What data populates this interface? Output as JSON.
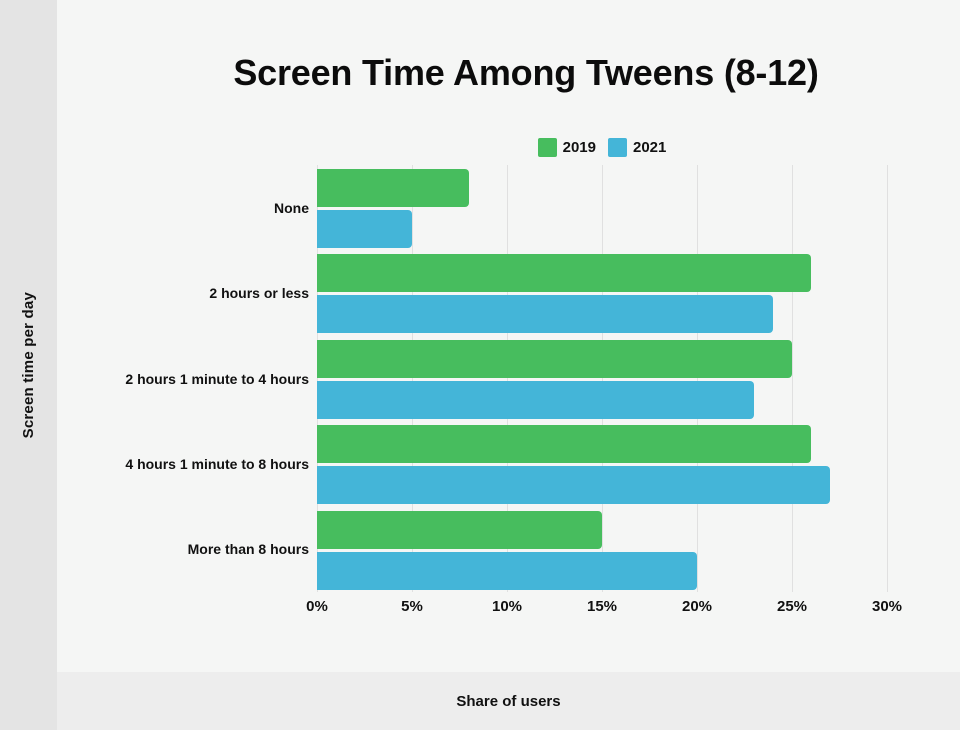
{
  "title": "Screen Time Among Tweens (8-12)",
  "sidebar": {
    "y_axis_label": "Screen time per day"
  },
  "footer": {
    "x_axis_label": "Share of users"
  },
  "legend": {
    "items": [
      {
        "label": "2019",
        "color": "#47bd5e"
      },
      {
        "label": "2021",
        "color": "#44b5d8"
      }
    ]
  },
  "colors": {
    "page_bg": "#f5f6f5",
    "sidebar_bg": "#e4e4e4",
    "footer_bg": "#ededed",
    "gridline": "#e0e0e0",
    "text": "#111111",
    "series_2019": "#47bd5e",
    "series_2021": "#44b5d8"
  },
  "chart_data": {
    "type": "bar",
    "orientation": "horizontal",
    "title": "Screen Time Among Tweens (8-12)",
    "xlabel": "Share of users",
    "ylabel": "Screen time per day",
    "categories": [
      "None",
      "2 hours or less",
      "2 hours 1 minute to 4 hours",
      "4 hours 1 minute to 8 hours",
      "More than 8 hours"
    ],
    "series": [
      {
        "name": "2019",
        "color": "#47bd5e",
        "values": [
          8,
          26,
          25,
          26,
          15
        ]
      },
      {
        "name": "2021",
        "color": "#44b5d8",
        "values": [
          5,
          24,
          23,
          27,
          20
        ]
      }
    ],
    "xlim": [
      0,
      30
    ],
    "x_ticks": [
      "0%",
      "5%",
      "10%",
      "15%",
      "20%",
      "25%",
      "30%"
    ],
    "grid": true,
    "legend_position": "top-center"
  }
}
